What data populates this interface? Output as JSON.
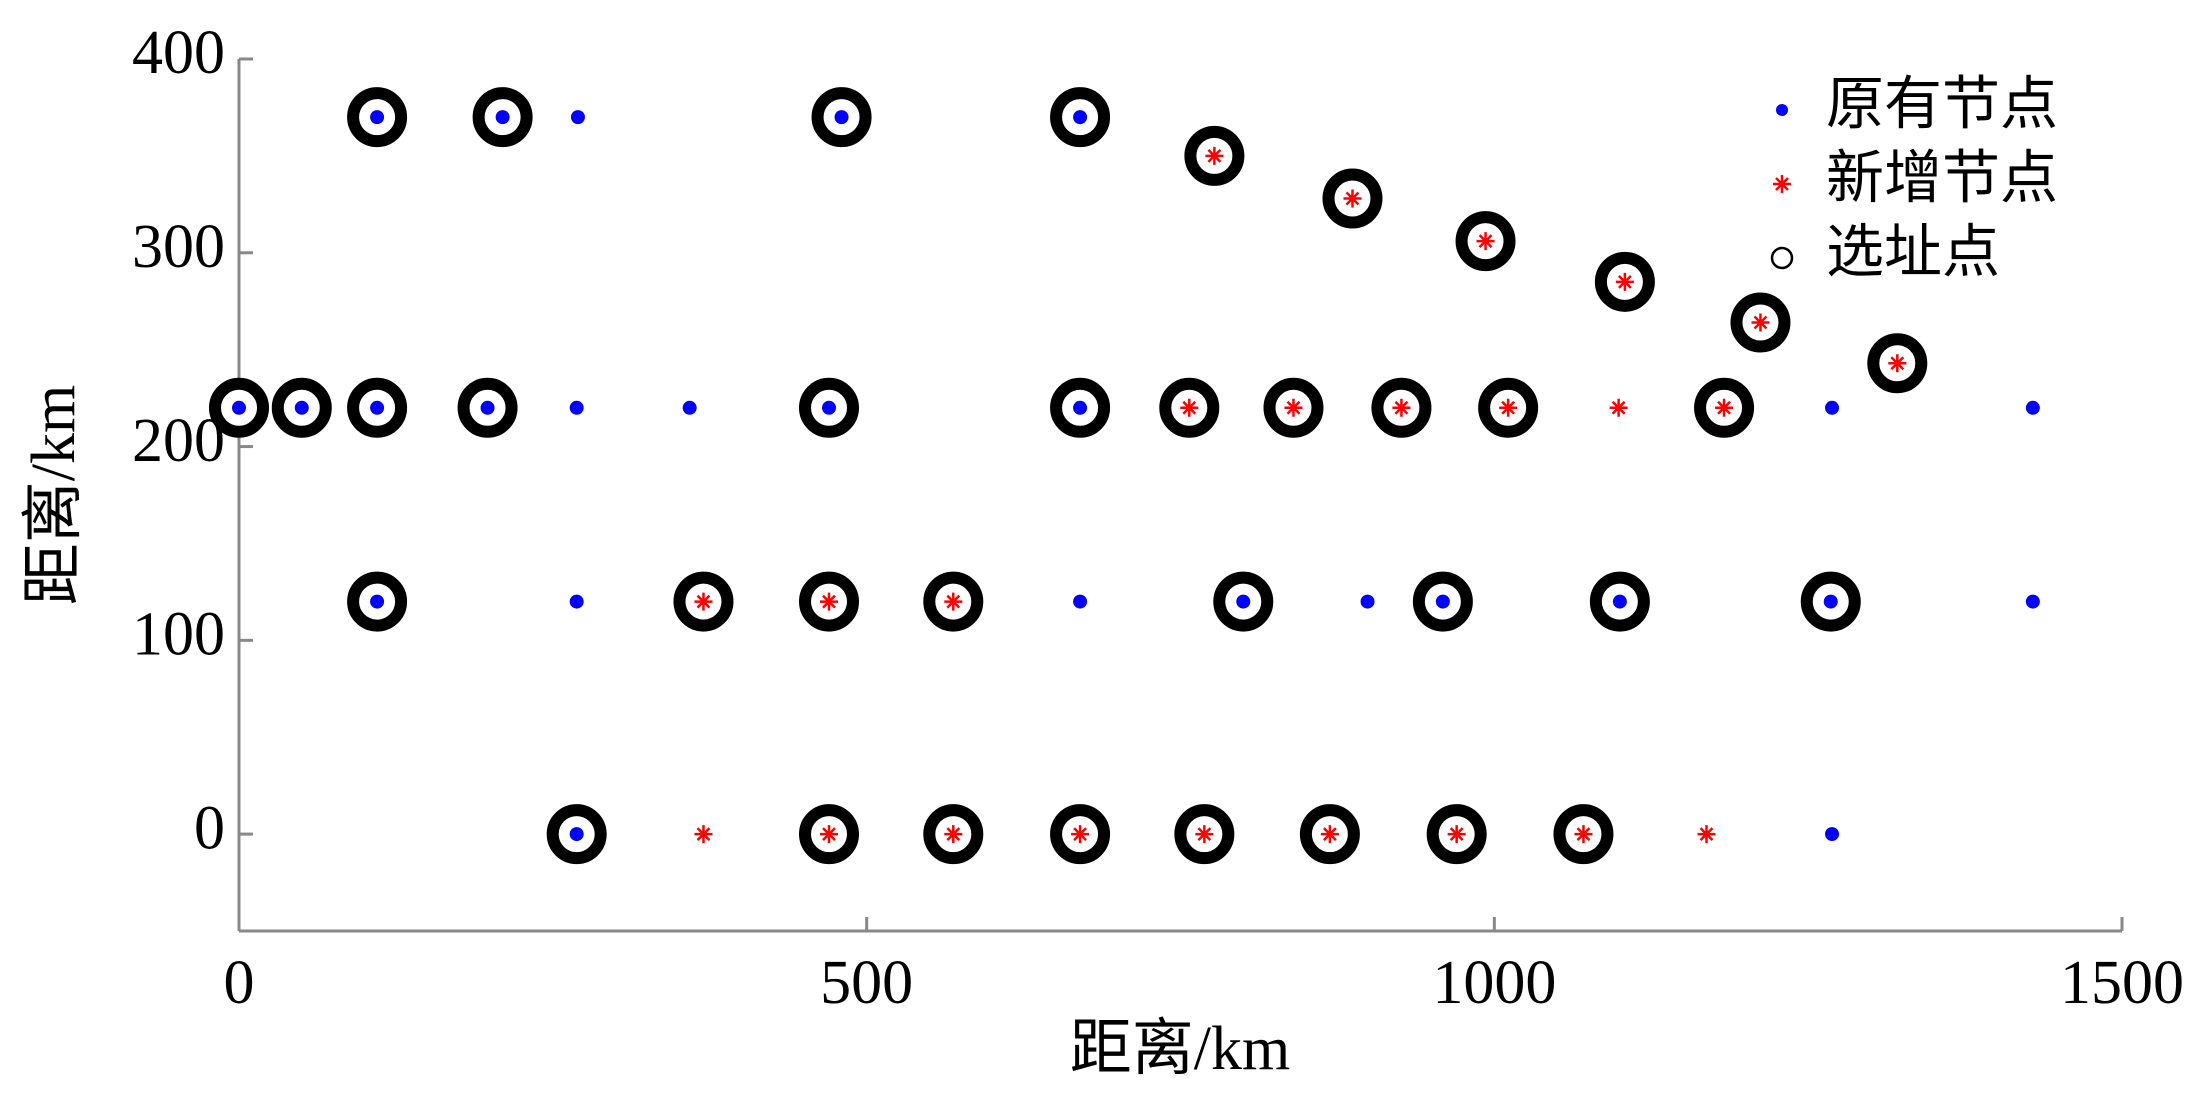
{
  "chart_data": {
    "type": "scatter",
    "xlabel": "距离/km",
    "ylabel": "距离/km",
    "xlim": [
      0,
      1500
    ],
    "ylim": [
      -50,
      400
    ],
    "xticks": [
      0,
      500,
      1000,
      1500
    ],
    "yticks": [
      0,
      100,
      200,
      300,
      400
    ],
    "legend": "upper right",
    "series": [
      {
        "name": "原有节点",
        "color": "#0000ff",
        "marker": "dot",
        "x": [
          110,
          210,
          270,
          480,
          670,
          0,
          50,
          110,
          198,
          269,
          359,
          470,
          670,
          1269,
          1429,
          110,
          269,
          670,
          800,
          899,
          959,
          1100,
          1268,
          1429,
          269,
          1269
        ],
        "values": [
          370,
          370,
          370,
          370,
          370,
          220,
          220,
          220,
          220,
          220,
          220,
          220,
          220,
          220,
          220,
          120,
          120,
          120,
          120,
          120,
          120,
          120,
          120,
          120,
          0,
          0
        ]
      },
      {
        "name": "新增节点",
        "color": "#ff0000",
        "marker": "star",
        "x": [
          777,
          887,
          993,
          1104,
          1212,
          1321,
          757,
          840,
          926,
          1011,
          1099,
          1183,
          370,
          470,
          569,
          370,
          470,
          569,
          670,
          769,
          869,
          970,
          1071,
          1169
        ],
        "values": [
          350,
          328,
          306,
          285,
          264,
          243,
          220,
          220,
          220,
          220,
          220,
          220,
          120,
          120,
          120,
          0,
          0,
          0,
          0,
          0,
          0,
          0,
          0,
          0
        ]
      },
      {
        "name": "选址点",
        "color": "#000000",
        "marker": "circle",
        "x": [
          110,
          210,
          480,
          670,
          777,
          887,
          993,
          1104,
          1212,
          1321,
          0,
          50,
          110,
          198,
          470,
          670,
          757,
          840,
          926,
          1011,
          1183,
          110,
          370,
          470,
          569,
          800,
          959,
          1100,
          1268,
          269,
          470,
          569,
          670,
          769,
          869,
          970,
          1071
        ],
        "values": [
          370,
          370,
          370,
          370,
          350,
          328,
          306,
          285,
          264,
          243,
          220,
          220,
          220,
          220,
          220,
          220,
          220,
          220,
          220,
          220,
          220,
          120,
          120,
          120,
          120,
          120,
          120,
          120,
          120,
          0,
          0,
          0,
          0,
          0,
          0,
          0,
          0
        ]
      }
    ]
  }
}
